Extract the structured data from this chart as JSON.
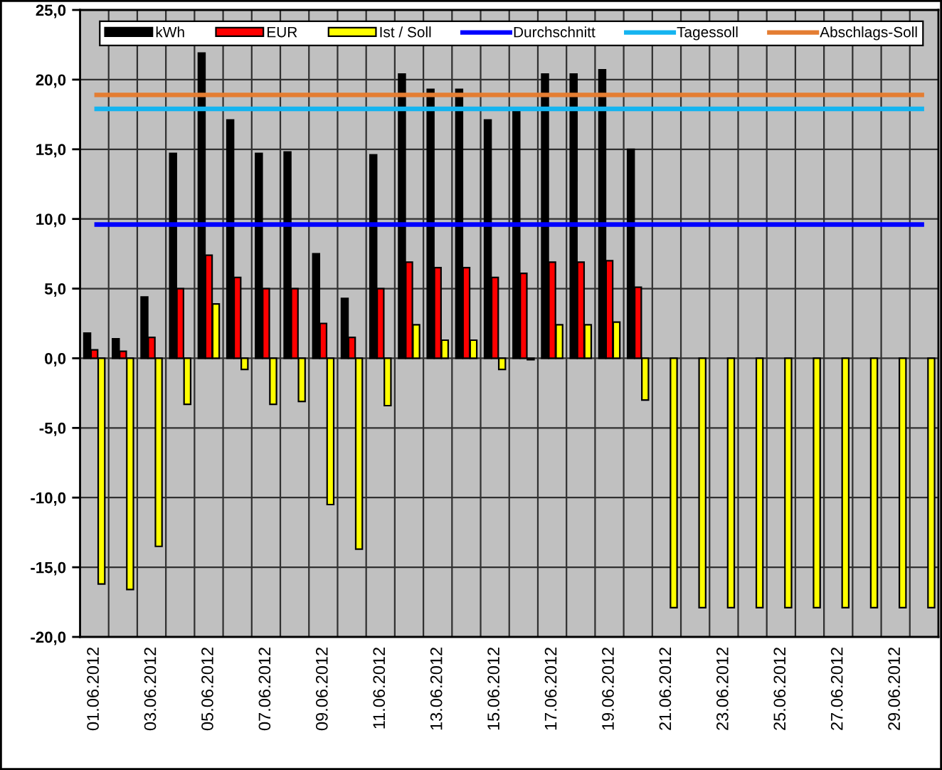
{
  "chart_data": {
    "type": "bar",
    "categories": [
      "01.06.2012",
      null,
      "03.06.2012",
      null,
      "05.06.2012",
      null,
      "07.06.2012",
      null,
      "09.06.2012",
      null,
      "11.06.2012",
      null,
      "13.06.2012",
      null,
      "15.06.2012",
      null,
      "17.06.2012",
      null,
      "19.06.2012",
      null,
      "21.06.2012",
      null,
      "23.06.2012",
      null,
      "25.06.2012",
      null,
      "27.06.2012",
      null,
      "29.06.2012",
      null
    ],
    "series": [
      {
        "name": "kWh",
        "color": "#000000",
        "values": [
          1.8,
          1.4,
          4.4,
          14.7,
          21.9,
          17.1,
          14.7,
          14.8,
          7.5,
          4.3,
          14.6,
          20.4,
          19.3,
          19.3,
          17.1,
          17.8,
          20.4,
          20.4,
          20.7,
          15.0,
          null,
          null,
          null,
          null,
          null,
          null,
          null,
          null,
          null,
          null
        ]
      },
      {
        "name": "EUR",
        "color": "#ff0000",
        "values": [
          0.6,
          0.5,
          1.5,
          5.0,
          7.4,
          5.8,
          5.0,
          5.0,
          2.5,
          1.5,
          5.0,
          6.9,
          6.5,
          6.5,
          5.8,
          6.1,
          6.9,
          6.9,
          7.0,
          5.1,
          null,
          null,
          null,
          null,
          null,
          null,
          null,
          null,
          null,
          null
        ]
      },
      {
        "name": "Ist / Soll",
        "color": "#ffff00",
        "values": [
          -16.2,
          -16.6,
          -13.5,
          -3.3,
          3.9,
          -0.8,
          -3.3,
          -3.1,
          -10.5,
          -13.7,
          -3.4,
          2.4,
          1.3,
          1.3,
          -0.8,
          -0.1,
          2.4,
          2.4,
          2.6,
          -3.0,
          -17.9,
          -17.9,
          -17.9,
          -17.9,
          -17.9,
          -17.9,
          -17.9,
          -17.9,
          -17.9,
          -17.9
        ]
      },
      {
        "name": "Durchschnitt",
        "type": "line",
        "color": "#0000ff",
        "values": [
          9.6,
          9.6,
          9.6,
          9.6,
          9.6,
          9.6,
          9.6,
          9.6,
          9.6,
          9.6,
          9.6,
          9.6,
          9.6,
          9.6,
          9.6,
          9.6,
          9.6,
          9.6,
          9.6,
          9.6,
          9.6,
          9.6,
          9.6,
          9.6,
          9.6,
          9.6,
          9.6,
          9.6,
          9.6,
          9.6
        ]
      },
      {
        "name": "Tagessoll",
        "type": "line",
        "color": "#14b4f0",
        "values": [
          17.9,
          17.9,
          17.9,
          17.9,
          17.9,
          17.9,
          17.9,
          17.9,
          17.9,
          17.9,
          17.9,
          17.9,
          17.9,
          17.9,
          17.9,
          17.9,
          17.9,
          17.9,
          17.9,
          17.9,
          17.9,
          17.9,
          17.9,
          17.9,
          17.9,
          17.9,
          17.9,
          17.9,
          17.9,
          17.9
        ]
      },
      {
        "name": "Abschlags-Soll",
        "type": "line",
        "color": "#e47d32",
        "values": [
          18.9,
          18.9,
          18.9,
          18.9,
          18.9,
          18.9,
          18.9,
          18.9,
          18.9,
          18.9,
          18.9,
          18.9,
          18.9,
          18.9,
          18.9,
          18.9,
          18.9,
          18.9,
          18.9,
          18.9,
          18.9,
          18.9,
          18.9,
          18.9,
          18.9,
          18.9,
          18.9,
          18.9,
          18.9,
          18.9
        ]
      }
    ],
    "ylim": [
      -20,
      25
    ],
    "yticks": [
      {
        "value": -20,
        "label": "-20,0"
      },
      {
        "value": -15,
        "label": "-15,0"
      },
      {
        "value": -10,
        "label": "-10,0"
      },
      {
        "value": -5,
        "label": "-5,0"
      },
      {
        "value": 0,
        "label": "0,0"
      },
      {
        "value": 5,
        "label": "5,0"
      },
      {
        "value": 10,
        "label": "10,0"
      },
      {
        "value": 15,
        "label": "15,0"
      },
      {
        "value": 20,
        "label": "20,0"
      },
      {
        "value": 25,
        "label": "25,0"
      }
    ],
    "grid": true,
    "legend": "top",
    "line_style": "solid"
  }
}
